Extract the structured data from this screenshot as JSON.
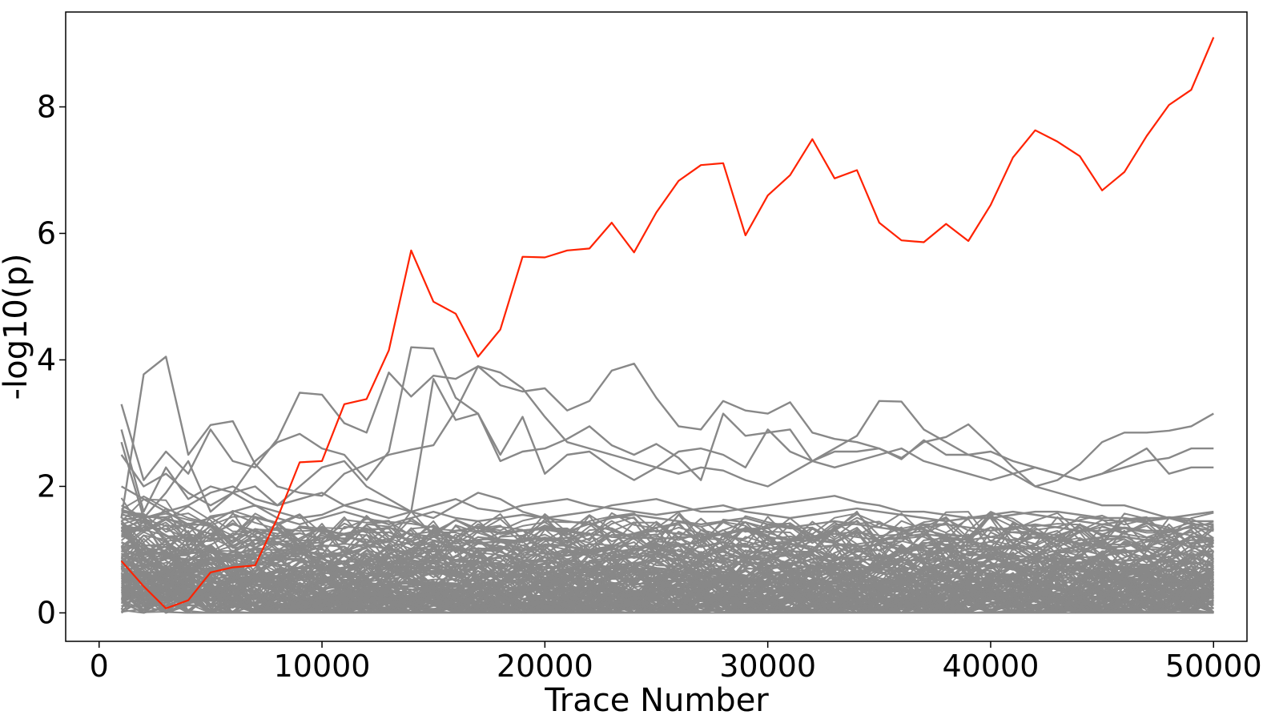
{
  "chart_data": {
    "type": "line",
    "title": "",
    "xlabel": "Trace Number",
    "ylabel": "-log10(p)",
    "xlim": [
      -1500,
      51500
    ],
    "ylim": [
      -0.45,
      9.5
    ],
    "x_ticks": [
      0,
      10000,
      20000,
      30000,
      40000,
      50000
    ],
    "y_ticks": [
      0,
      2,
      4,
      6,
      8
    ],
    "x_tick_labels": [
      "0",
      "10000",
      "20000",
      "30000",
      "40000",
      "50000"
    ],
    "y_tick_labels": [
      "0",
      "2",
      "4",
      "6",
      "8"
    ],
    "grid": false,
    "legend": "none",
    "x": [
      1000,
      2000,
      3000,
      4000,
      5000,
      6000,
      7000,
      8000,
      9000,
      10000,
      11000,
      12000,
      13000,
      14000,
      15000,
      16000,
      17000,
      18000,
      19000,
      20000,
      21000,
      22000,
      23000,
      24000,
      25000,
      26000,
      27000,
      28000,
      29000,
      30000,
      31000,
      32000,
      33000,
      34000,
      35000,
      36000,
      37000,
      38000,
      39000,
      40000,
      41000,
      42000,
      43000,
      44000,
      45000,
      46000,
      47000,
      48000,
      49000,
      50000
    ],
    "highlight_color": "#ff2200",
    "background_color": "#888888",
    "series": [
      {
        "role": "highlight",
        "values": [
          0.82,
          0.42,
          0.07,
          0.2,
          0.64,
          0.72,
          0.75,
          1.5,
          2.38,
          2.4,
          3.3,
          3.38,
          4.15,
          5.73,
          4.92,
          4.73,
          4.05,
          4.48,
          5.63,
          5.62,
          5.73,
          5.76,
          6.17,
          5.7,
          6.33,
          6.83,
          7.08,
          7.11,
          5.97,
          6.6,
          6.92,
          7.49,
          6.87,
          7.0,
          6.17,
          5.89,
          5.86,
          6.15,
          5.88,
          6.45,
          7.2,
          7.63,
          7.45,
          7.22,
          6.68,
          6.97,
          7.54,
          8.03,
          8.27,
          9.1
        ]
      },
      {
        "role": "background",
        "values": [
          3.3,
          2.1,
          2.55,
          2.2,
          2.9,
          2.4,
          2.3,
          2.75,
          3.48,
          3.45,
          3.0,
          2.85,
          3.8,
          3.42,
          3.75,
          3.7,
          3.9,
          3.8,
          3.55,
          3.1,
          2.7,
          2.6,
          2.5,
          2.4,
          2.3,
          2.2,
          2.3,
          2.25,
          2.1,
          2.0,
          2.2,
          2.4,
          2.6,
          2.8,
          3.35,
          3.34,
          2.9,
          2.7,
          2.5,
          2.55,
          2.4,
          2.3,
          2.2,
          2.1,
          2.2,
          2.3,
          2.4,
          2.45,
          2.6,
          2.6
        ]
      },
      {
        "role": "background",
        "values": [
          1.5,
          3.77,
          4.05,
          2.5,
          2.97,
          3.03,
          2.35,
          2.0,
          1.9,
          1.85,
          2.2,
          2.35,
          2.5,
          2.58,
          2.65,
          3.2,
          3.9,
          3.6,
          3.5,
          3.55,
          3.2,
          3.35,
          3.83,
          3.94,
          3.4,
          2.95,
          2.9,
          3.35,
          3.2,
          3.15,
          3.33,
          2.85,
          2.75,
          2.7,
          2.6,
          2.45,
          2.7,
          2.78,
          2.98,
          2.65,
          2.3,
          2.0,
          2.1,
          2.35,
          2.7,
          2.85,
          2.85,
          2.88,
          2.95,
          3.15
        ]
      },
      {
        "role": "background",
        "values": [
          2.9,
          1.6,
          2.3,
          1.8,
          2.0,
          1.9,
          2.4,
          2.7,
          2.83,
          2.6,
          2.5,
          2.1,
          2.55,
          4.2,
          4.18,
          3.4,
          3.15,
          2.4,
          2.55,
          2.6,
          2.75,
          2.95,
          2.65,
          2.5,
          2.67,
          2.45,
          2.1,
          3.15,
          2.8,
          2.85,
          2.9,
          2.4,
          2.55,
          2.55,
          2.6,
          2.43,
          2.73,
          2.5,
          2.5,
          2.4,
          2.2,
          2.0,
          1.9,
          1.8,
          1.7,
          1.7,
          1.6,
          1.5,
          1.4,
          1.4
        ]
      },
      {
        "role": "background",
        "values": [
          2.7,
          1.5,
          1.9,
          2.4,
          1.6,
          1.9,
          2.0,
          1.7,
          2.0,
          2.3,
          2.4,
          2.0,
          1.8,
          1.6,
          3.7,
          3.05,
          3.15,
          2.5,
          3.1,
          2.2,
          2.5,
          2.55,
          2.3,
          2.1,
          2.3,
          2.55,
          2.6,
          2.5,
          2.3,
          2.9,
          2.55,
          2.4,
          2.3,
          2.4,
          2.5,
          2.6,
          2.4,
          2.3,
          2.2,
          2.1,
          2.2,
          2.3,
          2.2,
          2.1,
          2.2,
          2.4,
          2.6,
          2.2,
          2.3,
          2.3
        ]
      },
      {
        "role": "background",
        "values": [
          2.5,
          2.0,
          2.2,
          1.9,
          1.7,
          1.9,
          1.7,
          1.6,
          1.5,
          1.55,
          1.7,
          1.8,
          1.7,
          1.6,
          1.5,
          1.7,
          1.9,
          1.8,
          1.6,
          1.5,
          1.55,
          1.6,
          1.7,
          1.75,
          1.8,
          1.7,
          1.6,
          1.6,
          1.65,
          1.7,
          1.75,
          1.8,
          1.85,
          1.75,
          1.7,
          1.6,
          1.6,
          1.55,
          1.5,
          1.5,
          1.55,
          1.6,
          1.6,
          1.55,
          1.5,
          1.5,
          1.45,
          1.5,
          1.55,
          1.6
        ]
      },
      {
        "role": "background",
        "values": [
          2.0,
          1.8,
          1.6,
          1.7,
          1.9,
          2.0,
          1.8,
          1.7,
          1.8,
          1.9,
          1.7,
          1.6,
          1.5,
          1.6,
          1.7,
          1.8,
          1.65,
          1.6,
          1.7,
          1.75,
          1.8,
          1.7,
          1.65,
          1.6,
          1.55,
          1.6,
          1.65,
          1.7,
          1.6,
          1.55,
          1.5,
          1.55,
          1.6,
          1.65,
          1.6,
          1.55,
          1.5,
          1.45,
          1.5,
          1.55,
          1.6,
          1.55,
          1.5,
          1.45,
          1.4,
          1.45,
          1.5,
          1.5,
          1.45,
          1.45
        ]
      },
      {
        "role": "background",
        "values": [
          1.7,
          1.5,
          1.6,
          1.4,
          1.5,
          1.6,
          1.7,
          1.5,
          1.4,
          1.5,
          1.6,
          1.5,
          1.4,
          1.5,
          1.6,
          1.5,
          1.45,
          1.5,
          1.55,
          1.5,
          1.45,
          1.4,
          1.5,
          1.55,
          1.5,
          1.45,
          1.4,
          1.45,
          1.5,
          1.4,
          1.35,
          1.4,
          1.45,
          1.4,
          1.35,
          1.3,
          1.35,
          1.4,
          1.35,
          1.3,
          1.35,
          1.4,
          1.35,
          1.3,
          1.3,
          1.35,
          1.3,
          1.3,
          1.35,
          1.3
        ]
      },
      {
        "role": "background",
        "values": [
          1.4,
          1.3,
          1.5,
          1.35,
          1.25,
          1.4,
          1.3,
          1.2,
          1.35,
          1.3,
          1.25,
          1.3,
          1.35,
          1.25,
          1.2,
          1.3,
          1.35,
          1.25,
          1.3,
          1.35,
          1.3,
          1.25,
          1.2,
          1.25,
          1.3,
          1.25,
          1.2,
          1.25,
          1.3,
          1.2,
          1.15,
          1.2,
          1.25,
          1.2,
          1.15,
          1.2,
          1.25,
          1.2,
          1.15,
          1.2,
          1.15,
          1.2,
          1.15,
          1.1,
          1.15,
          1.2,
          1.15,
          1.1,
          1.15,
          1.15
        ]
      }
    ]
  }
}
